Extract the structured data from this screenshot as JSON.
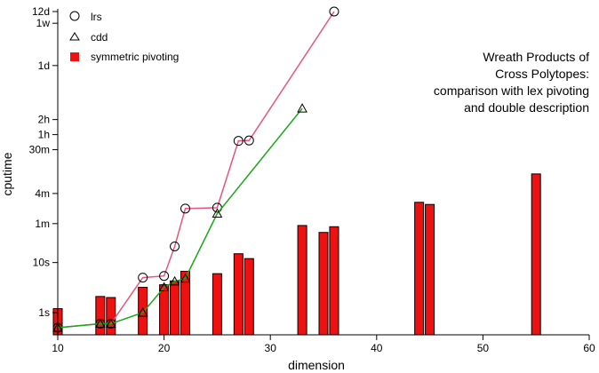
{
  "chart_data": {
    "type": "line",
    "xlabel": "dimension",
    "ylabel": "cputime",
    "xlim": [
      10,
      60
    ],
    "x_ticks": [
      10,
      20,
      30,
      40,
      50,
      60
    ],
    "y_scale": "log",
    "y_unit": "seconds",
    "y_ticks": [
      {
        "label": "1s",
        "seconds": 1
      },
      {
        "label": "10s",
        "seconds": 10
      },
      {
        "label": "1m",
        "seconds": 60
      },
      {
        "label": "4m",
        "seconds": 240
      },
      {
        "label": "30m",
        "seconds": 1800
      },
      {
        "label": "1h",
        "seconds": 3600
      },
      {
        "label": "2h",
        "seconds": 7200
      },
      {
        "label": "1d",
        "seconds": 86400
      },
      {
        "label": "1w",
        "seconds": 604800
      },
      {
        "label": "12d",
        "seconds": 1036800
      }
    ],
    "annotation": [
      "Wreath Products of",
      "Cross Polytopes:",
      "comparison with lex pivoting",
      "and double description"
    ],
    "legend_position": "top-left",
    "series": [
      {
        "name": "lrs",
        "kind": "line",
        "marker": "circle",
        "color": "#e8557a",
        "x": [
          10,
          14,
          15,
          18,
          20,
          21,
          22,
          25,
          27,
          28,
          36
        ],
        "y": [
          0.5,
          0.6,
          0.6,
          5,
          5.4,
          21,
          120,
          125,
          2700,
          2750,
          1036800
        ]
      },
      {
        "name": "cdd",
        "kind": "line",
        "marker": "triangle",
        "color": "#1aa61a",
        "x": [
          10,
          14,
          15,
          18,
          20,
          21,
          22,
          25,
          33
        ],
        "y": [
          0.5,
          0.6,
          0.6,
          1.0,
          3.2,
          4.2,
          4.8,
          95,
          12000
        ]
      },
      {
        "name": "symmetric pivoting",
        "kind": "bar",
        "marker": "square",
        "color": "#ee1111",
        "x": [
          10,
          14,
          15,
          18,
          20,
          21,
          22,
          25,
          27,
          28,
          33,
          35,
          36,
          44,
          45,
          55
        ],
        "y": [
          1.2,
          2.1,
          2.0,
          3.2,
          3.6,
          4.3,
          6.7,
          6.0,
          15,
          12,
          55,
          40,
          52,
          160,
          145,
          590
        ]
      }
    ]
  }
}
